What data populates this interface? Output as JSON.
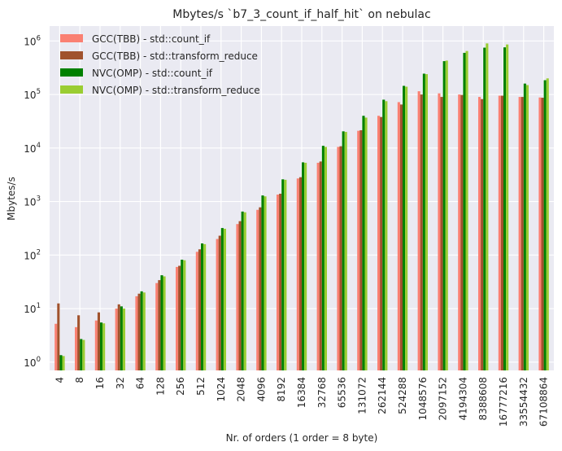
{
  "chart_data": {
    "type": "bar",
    "title": "Mbytes/s `b7_3_count_if_half_hit` on nebulac",
    "xlabel": "Nr. of orders (1 order = 8 byte)",
    "ylabel": "Mbytes/s",
    "yscale": "log",
    "ylim": [
      0.7,
      1900000
    ],
    "yticks": [
      {
        "value": 1,
        "base": "10",
        "exp": "0"
      },
      {
        "value": 10,
        "base": "10",
        "exp": "1"
      },
      {
        "value": 100,
        "base": "10",
        "exp": "2"
      },
      {
        "value": 1000,
        "base": "10",
        "exp": "3"
      },
      {
        "value": 10000,
        "base": "10",
        "exp": "4"
      },
      {
        "value": 100000,
        "base": "10",
        "exp": "5"
      },
      {
        "value": 1000000,
        "base": "10",
        "exp": "6"
      }
    ],
    "grid": true,
    "legend_position": "top-left",
    "categories": [
      "4",
      "8",
      "16",
      "32",
      "64",
      "128",
      "256",
      "512",
      "1024",
      "2048",
      "4096",
      "8192",
      "16384",
      "32768",
      "65536",
      "131072",
      "262144",
      "524288",
      "1048576",
      "2097152",
      "4194304",
      "8388608",
      "16777216",
      "33554432",
      "67108864"
    ],
    "series": [
      {
        "name": "GCC(TBB) - std::count_if",
        "color": "#fa8072",
        "values": [
          5.2,
          4.5,
          6,
          10,
          17,
          30,
          60,
          115,
          200,
          380,
          700,
          1350,
          2700,
          5300,
          10500,
          21000,
          40000,
          72000,
          115000,
          105000,
          100000,
          90000,
          95000,
          90000,
          88000
        ]
      },
      {
        "name": "GCC(TBB) - std::transform_reduce",
        "color": "#a0522d",
        "values": [
          12.5,
          7.5,
          8.5,
          12,
          19,
          34,
          63,
          128,
          230,
          430,
          780,
          1400,
          2850,
          5600,
          10800,
          21500,
          38000,
          65000,
          100000,
          90000,
          98000,
          82000,
          95000,
          90000,
          87000
        ]
      },
      {
        "name": "NVC(OMP) - std::count_if",
        "color": "#008000",
        "values": [
          1.35,
          2.7,
          5.5,
          11,
          21,
          42,
          82,
          165,
          320,
          650,
          1300,
          2600,
          5400,
          11000,
          20500,
          40000,
          80000,
          145000,
          245000,
          420000,
          600000,
          750000,
          760000,
          160000,
          185000
        ]
      },
      {
        "name": "NVC(OMP) - std::transform_reduce",
        "color": "#9acd32",
        "values": [
          1.3,
          2.6,
          5.3,
          10,
          20,
          40,
          80,
          160,
          310,
          630,
          1250,
          2550,
          5300,
          10500,
          20000,
          37000,
          75000,
          140000,
          240000,
          430000,
          650000,
          900000,
          860000,
          150000,
          200000
        ]
      }
    ]
  }
}
